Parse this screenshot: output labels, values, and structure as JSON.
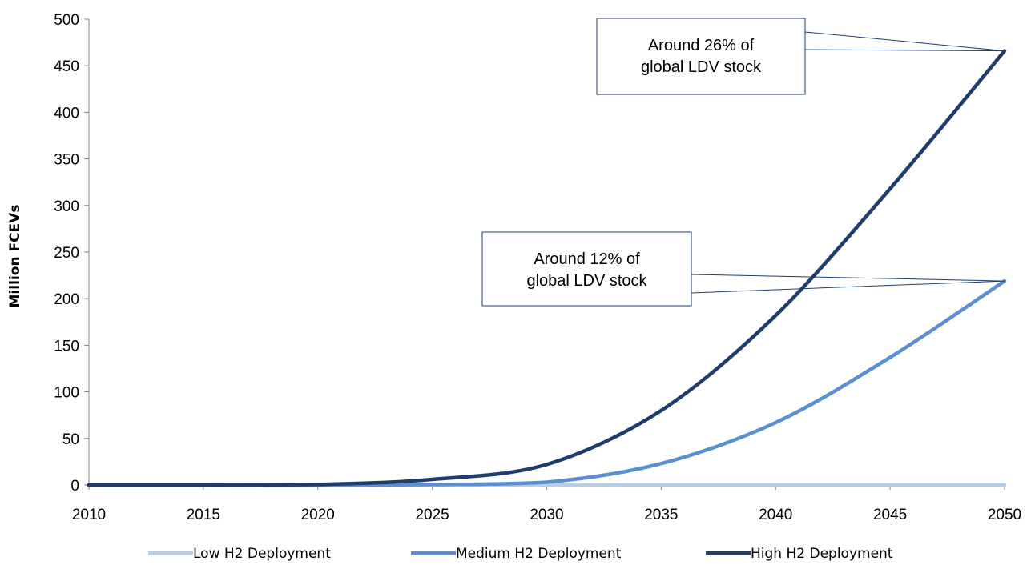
{
  "chart_data": {
    "type": "line",
    "title": "",
    "xlabel": "",
    "ylabel": "Million FCEVs",
    "x": [
      2010,
      2015,
      2020,
      2025,
      2030,
      2035,
      2040,
      2045,
      2050
    ],
    "xlim": [
      2010,
      2050
    ],
    "ylim": [
      0,
      500
    ],
    "yticks": [
      0,
      50,
      100,
      150,
      200,
      250,
      300,
      350,
      400,
      450,
      500
    ],
    "xticks": [
      2010,
      2015,
      2020,
      2025,
      2030,
      2035,
      2040,
      2045,
      2050
    ],
    "grid": false,
    "legend_position": "bottom",
    "series": [
      {
        "name": "Low H2 Deployment",
        "color": "#b7cde3",
        "values": [
          0,
          0,
          0,
          0,
          0,
          0,
          0,
          0,
          0
        ]
      },
      {
        "name": "Medium H2 Deployment",
        "color": "#5b8fd0",
        "values": [
          0,
          0,
          0,
          0.5,
          3,
          23,
          67,
          137,
          219
        ]
      },
      {
        "name": "High H2 Deployment",
        "color": "#1f3d6a",
        "values": [
          0,
          0,
          0.5,
          6,
          22,
          80,
          182,
          318,
          466
        ]
      }
    ],
    "annotations": [
      {
        "lines": [
          "Around 26% of",
          "global LDV stock"
        ],
        "target": {
          "x": 2050,
          "y": 466
        }
      },
      {
        "lines": [
          "Around 12% of",
          "global LDV stock"
        ],
        "target": {
          "x": 2050,
          "y": 219
        }
      }
    ]
  }
}
